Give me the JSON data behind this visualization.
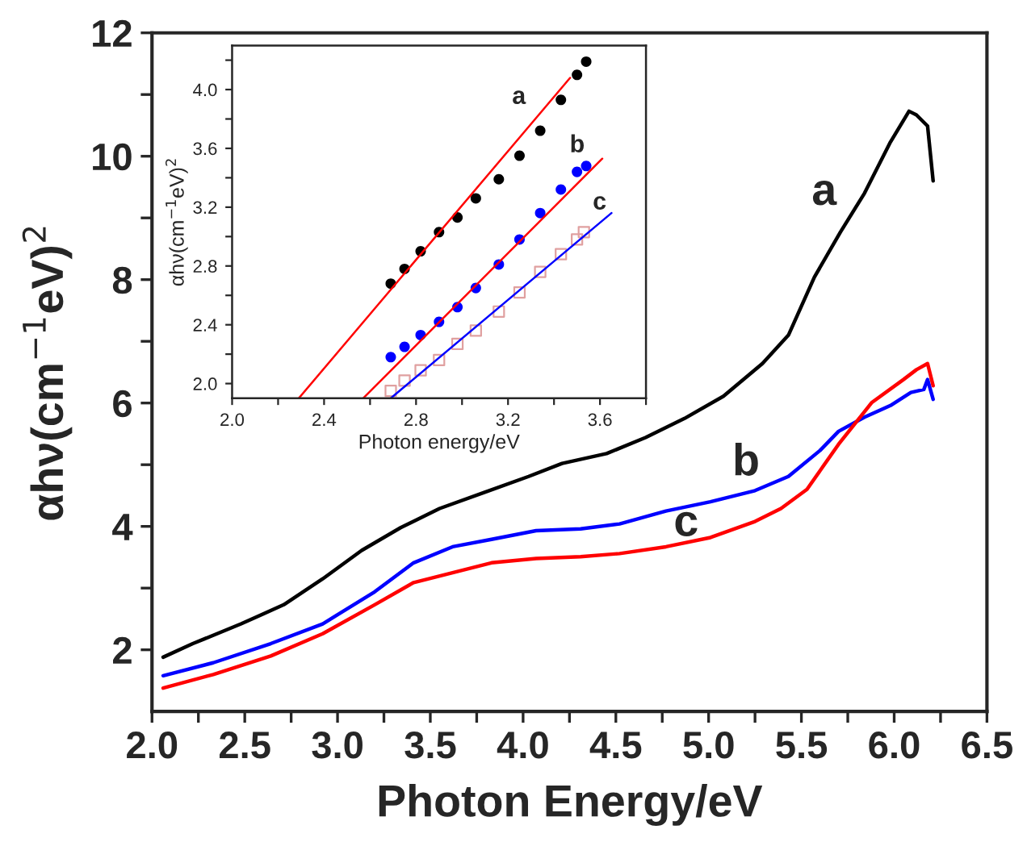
{
  "chart_data": [
    {
      "type": "line",
      "xlabel": "Photon Energy/eV",
      "ylabel": "αhν(cm$^{−1}$eV)$^{2}$",
      "xlim": [
        2.0,
        6.5
      ],
      "ylim": [
        1,
        12
      ],
      "xticks": [
        {
          "value": 2.0,
          "label": "2.0"
        },
        {
          "value": 2.25,
          "label": null
        },
        {
          "value": 2.5,
          "label": "2.5"
        },
        {
          "value": 2.75,
          "label": null
        },
        {
          "value": 3.0,
          "label": "3.0"
        },
        {
          "value": 3.25,
          "label": null
        },
        {
          "value": 3.5,
          "label": "3.5"
        },
        {
          "value": 3.75,
          "label": null
        },
        {
          "value": 4.0,
          "label": "4.0"
        },
        {
          "value": 4.25,
          "label": null
        },
        {
          "value": 4.5,
          "label": "4.5"
        },
        {
          "value": 4.75,
          "label": null
        },
        {
          "value": 5.0,
          "label": "5.0"
        },
        {
          "value": 5.25,
          "label": null
        },
        {
          "value": 5.5,
          "label": "5.5"
        },
        {
          "value": 5.75,
          "label": null
        },
        {
          "value": 6.0,
          "label": "6.0"
        },
        {
          "value": 6.25,
          "label": null
        },
        {
          "value": 6.5,
          "label": "6.5"
        }
      ],
      "yticks": [
        2,
        {
          "value": 3,
          "label": null
        },
        4,
        {
          "value": 5,
          "label": null
        },
        6,
        {
          "value": 7,
          "label": null
        },
        8,
        {
          "value": 9,
          "label": null
        },
        10,
        {
          "value": 11,
          "label": null
        },
        12
      ],
      "series": [
        {
          "name": "a",
          "color": "#000000",
          "x": [
            2.06,
            2.22,
            2.48,
            2.71,
            2.92,
            3.13,
            3.34,
            3.55,
            3.79,
            4.03,
            4.21,
            4.45,
            4.66,
            4.87,
            5.08,
            5.29,
            5.43,
            5.57,
            5.71,
            5.84,
            5.98,
            6.08,
            6.12,
            6.18,
            6.21
          ],
          "values": [
            1.88,
            2.1,
            2.42,
            2.73,
            3.15,
            3.61,
            3.98,
            4.29,
            4.55,
            4.81,
            5.02,
            5.18,
            5.44,
            5.75,
            6.11,
            6.64,
            7.1,
            8.04,
            8.77,
            9.4,
            10.23,
            10.73,
            10.67,
            10.49,
            9.6
          ]
        },
        {
          "name": "b",
          "color": "#0000ff",
          "x": [
            2.06,
            2.33,
            2.64,
            2.92,
            3.2,
            3.41,
            3.62,
            3.83,
            4.07,
            4.31,
            4.52,
            4.77,
            5.01,
            5.25,
            5.43,
            5.6,
            5.7,
            5.84,
            5.98,
            6.09,
            6.16,
            6.18,
            6.21
          ],
          "values": [
            1.58,
            1.79,
            2.1,
            2.42,
            2.94,
            3.41,
            3.67,
            3.79,
            3.93,
            3.96,
            4.04,
            4.25,
            4.4,
            4.58,
            4.81,
            5.23,
            5.54,
            5.77,
            5.96,
            6.17,
            6.22,
            6.38,
            6.06
          ]
        },
        {
          "name": "c",
          "color": "#ff0000",
          "x": [
            2.06,
            2.33,
            2.64,
            2.92,
            3.2,
            3.41,
            3.62,
            3.83,
            4.07,
            4.31,
            4.52,
            4.77,
            5.01,
            5.25,
            5.39,
            5.53,
            5.7,
            5.88,
            6.05,
            6.12,
            6.18,
            6.21
          ],
          "values": [
            1.38,
            1.6,
            1.9,
            2.26,
            2.73,
            3.09,
            3.25,
            3.41,
            3.48,
            3.51,
            3.56,
            3.67,
            3.82,
            4.08,
            4.29,
            4.6,
            5.33,
            6.01,
            6.38,
            6.54,
            6.64,
            6.28
          ]
        }
      ]
    },
    {
      "type": "scatter",
      "xlabel": "Photon energy/eV",
      "ylabel": "αhν(cm$^{−1}$eV)$^{2}$",
      "xlim": [
        2.0,
        3.8
      ],
      "ylim": [
        1.9,
        4.3
      ],
      "xticks": [
        {
          "value": 2.0,
          "label": "2.0"
        },
        {
          "value": 2.2,
          "label": null
        },
        {
          "value": 2.4,
          "label": "2.4"
        },
        {
          "value": 2.6,
          "label": null
        },
        {
          "value": 2.8,
          "label": "2.8"
        },
        {
          "value": 3.0,
          "label": null
        },
        {
          "value": 3.2,
          "label": "3.2"
        },
        {
          "value": 3.4,
          "label": null
        },
        {
          "value": 3.6,
          "label": "3.6"
        },
        {
          "value": 3.8,
          "label": null
        }
      ],
      "yticks": [
        {
          "value": 2.0,
          "label": "2.0"
        },
        {
          "value": 2.2,
          "label": null
        },
        {
          "value": 2.4,
          "label": "2.4"
        },
        {
          "value": 2.6,
          "label": null
        },
        {
          "value": 2.8,
          "label": "2.8"
        },
        {
          "value": 3.0,
          "label": null
        },
        {
          "value": 3.2,
          "label": "3.2"
        },
        {
          "value": 3.4,
          "label": null
        },
        {
          "value": 3.6,
          "label": "3.6"
        },
        {
          "value": 3.8,
          "label": null
        },
        {
          "value": 4.0,
          "label": "4.0"
        },
        {
          "value": 4.2,
          "label": null
        }
      ],
      "series": [
        {
          "name": "a",
          "type": "scatter",
          "marker": "circle",
          "color": "#000000",
          "x": [
            2.69,
            2.75,
            2.82,
            2.9,
            2.98,
            3.06,
            3.16,
            3.25,
            3.34,
            3.43,
            3.5,
            3.54
          ],
          "values": [
            2.68,
            2.78,
            2.9,
            3.03,
            3.13,
            3.26,
            3.39,
            3.55,
            3.72,
            3.93,
            4.1,
            4.19
          ]
        },
        {
          "name": "b",
          "type": "scatter",
          "marker": "circle",
          "color": "#0000ff",
          "x": [
            2.69,
            2.75,
            2.82,
            2.9,
            2.98,
            3.06,
            3.16,
            3.25,
            3.34,
            3.43,
            3.5,
            3.54
          ],
          "values": [
            2.18,
            2.25,
            2.33,
            2.42,
            2.52,
            2.65,
            2.81,
            2.98,
            3.16,
            3.32,
            3.44,
            3.48
          ]
        },
        {
          "name": "c",
          "type": "scatter",
          "marker": "square",
          "color": "#e0a0a0",
          "x": [
            2.69,
            2.75,
            2.82,
            2.9,
            2.98,
            3.06,
            3.16,
            3.25,
            3.34,
            3.43,
            3.5,
            3.53
          ],
          "values": [
            1.95,
            2.02,
            2.09,
            2.16,
            2.27,
            2.36,
            2.49,
            2.62,
            2.76,
            2.88,
            2.98,
            3.03
          ]
        },
        {
          "type": "line",
          "color": "#ff0000",
          "x": [
            2.29,
            3.47
          ],
          "values": [
            1.9,
            4.08
          ]
        },
        {
          "type": "line",
          "color": "#ff0000",
          "x": [
            2.57,
            3.61
          ],
          "values": [
            1.9,
            3.53
          ]
        },
        {
          "type": "line",
          "color": "#0000ff",
          "x": [
            2.69,
            3.65
          ],
          "values": [
            1.9,
            3.16
          ]
        }
      ]
    }
  ]
}
